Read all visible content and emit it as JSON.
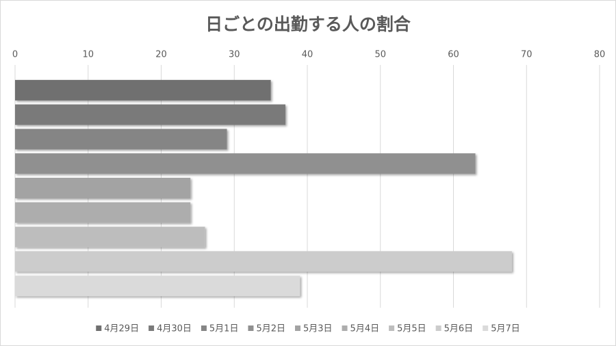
{
  "chart_data": {
    "type": "bar",
    "orientation": "horizontal",
    "title": "日ごとの出勤する人の割合",
    "series": [
      {
        "name": "4月29日",
        "color": "#6f6f6f",
        "values": [
          35
        ]
      },
      {
        "name": "4月30日",
        "color": "#7a7a7a",
        "values": [
          37
        ]
      },
      {
        "name": "5月1日",
        "color": "#858585",
        "values": [
          29
        ]
      },
      {
        "name": "5月2日",
        "color": "#909090",
        "values": [
          63
        ]
      },
      {
        "name": "5月3日",
        "color": "#a3a3a3",
        "values": [
          24
        ]
      },
      {
        "name": "5月4日",
        "color": "#adadad",
        "values": [
          24
        ]
      },
      {
        "name": "5月5日",
        "color": "#bdbdbd",
        "values": [
          26
        ]
      },
      {
        "name": "5月6日",
        "color": "#cccccc",
        "values": [
          68
        ]
      },
      {
        "name": "5月7日",
        "color": "#dadada",
        "values": [
          39
        ]
      }
    ],
    "xlim": [
      0,
      80
    ],
    "xticks": [
      0,
      10,
      20,
      30,
      40,
      50,
      60,
      70,
      80
    ],
    "grid": true,
    "legend": "bottom"
  }
}
